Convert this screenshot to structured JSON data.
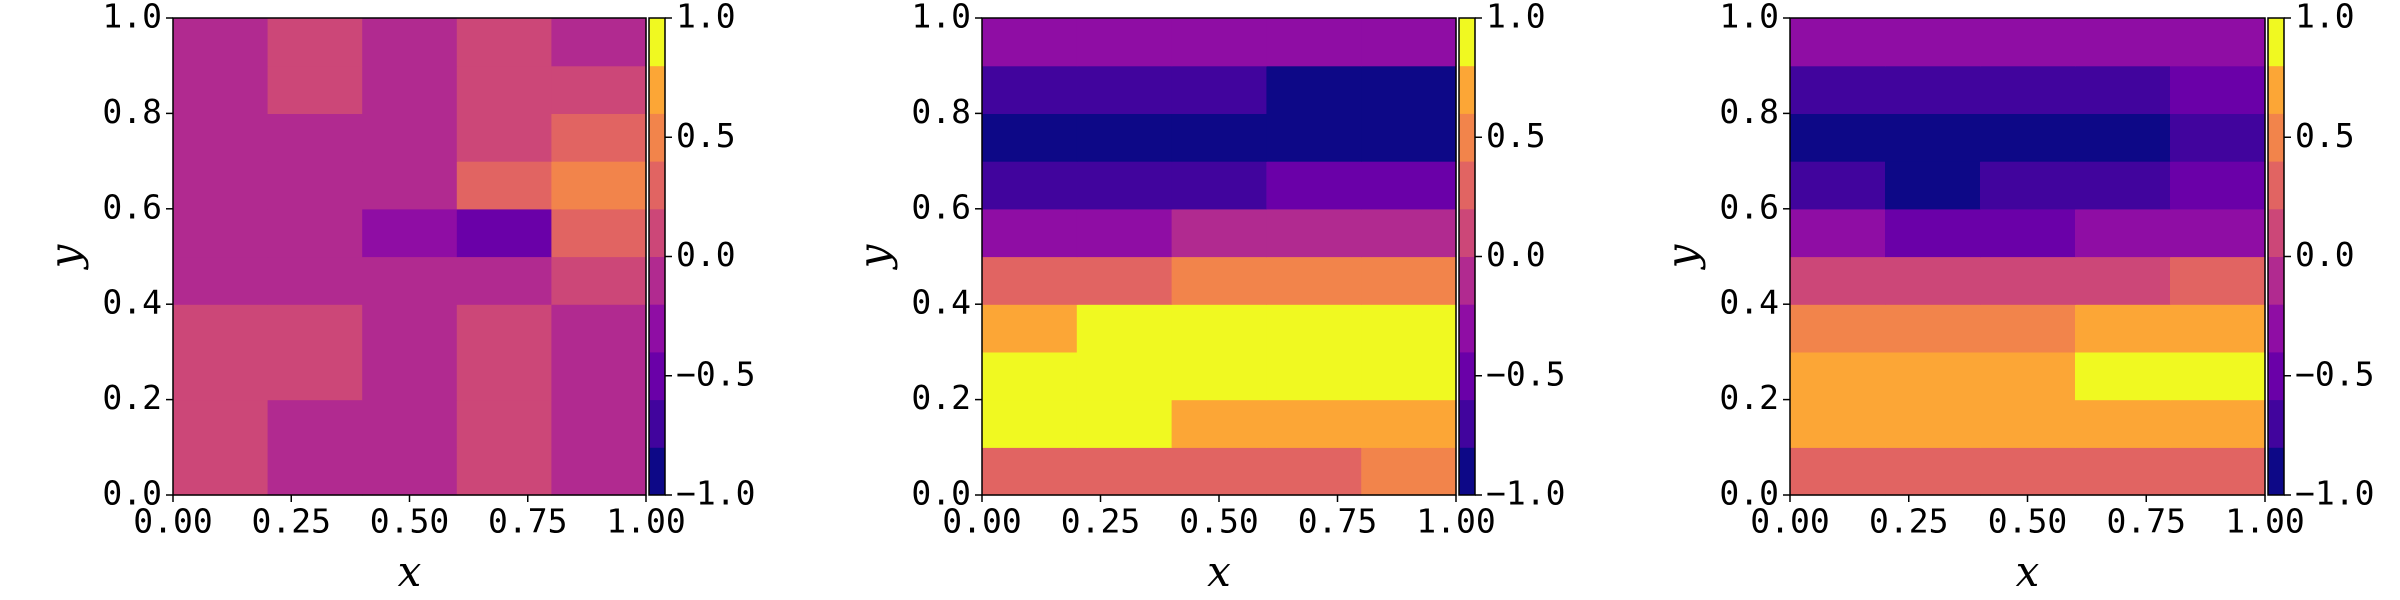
{
  "chart_data": [
    {
      "type": "contour",
      "xlabel": "x",
      "ylabel": "y",
      "xlim": [
        0,
        1
      ],
      "ylim": [
        0,
        1
      ],
      "xticks": [
        {
          "value": 0,
          "label": "0.00"
        },
        0.25,
        {
          "value": 0.5,
          "label": "0.50"
        },
        0.75,
        {
          "value": 1,
          "label": "1.00"
        }
      ],
      "yticks": [
        {
          "value": 0,
          "label": "0.0"
        },
        0.2,
        0.4,
        0.6,
        0.8,
        {
          "value": 1,
          "label": "1.0"
        }
      ],
      "x": [
        0.1,
        0.3,
        0.5,
        0.7,
        0.9
      ],
      "y": [
        0.05,
        0.15,
        0.25,
        0.35,
        0.45,
        0.55,
        0.65,
        0.75,
        0.85,
        0.95
      ],
      "z": [
        [
          0.1,
          -0.1,
          -0.1,
          0.1,
          -0.1
        ],
        [
          0.1,
          -0.1,
          -0.1,
          0.1,
          -0.1
        ],
        [
          0.1,
          0.1,
          -0.1,
          0.1,
          -0.1
        ],
        [
          0.1,
          0.1,
          -0.1,
          0.1,
          -0.1
        ],
        [
          -0.1,
          -0.1,
          -0.1,
          -0.1,
          0.1
        ],
        [
          -0.1,
          -0.1,
          -0.3,
          -0.5,
          0.3
        ],
        [
          -0.1,
          -0.1,
          -0.1,
          0.3,
          0.5
        ],
        [
          -0.1,
          -0.1,
          -0.1,
          0.1,
          0.3
        ],
        [
          -0.1,
          0.1,
          -0.1,
          0.1,
          0.1
        ],
        [
          -0.1,
          0.1,
          -0.1,
          0.1,
          -0.1
        ]
      ],
      "levels": [
        -1,
        -0.8,
        -0.6,
        -0.4,
        -0.2,
        0,
        0.2,
        0.4,
        0.6,
        0.8,
        1
      ],
      "colors": [
        "#0d0887",
        "#41049d",
        "#6a00a8",
        "#8f0da4",
        "#b12a90",
        "#cc4778",
        "#e16462",
        "#f2844b",
        "#fca636",
        "#f0f921"
      ],
      "clim": [
        -1,
        1
      ],
      "cticks": [
        {
          "value": -1,
          "label": "−1.0"
        },
        {
          "value": -0.5,
          "label": "−0.5"
        },
        {
          "value": 0,
          "label": "0.0"
        },
        0.5,
        {
          "value": 1,
          "label": "1.0"
        }
      ]
    },
    {
      "type": "contour",
      "xlabel": "x",
      "ylabel": "y",
      "xlim": [
        0,
        1
      ],
      "ylim": [
        0,
        1
      ],
      "xticks": [
        {
          "value": 0,
          "label": "0.00"
        },
        0.25,
        {
          "value": 0.5,
          "label": "0.50"
        },
        0.75,
        {
          "value": 1,
          "label": "1.00"
        }
      ],
      "yticks": [
        {
          "value": 0,
          "label": "0.0"
        },
        0.2,
        0.4,
        0.6,
        0.8,
        {
          "value": 1,
          "label": "1.0"
        }
      ],
      "x": [
        0.1,
        0.3,
        0.5,
        0.7,
        0.9
      ],
      "y": [
        0.05,
        0.15,
        0.25,
        0.35,
        0.45,
        0.55,
        0.65,
        0.75,
        0.85,
        0.95
      ],
      "z": [
        [
          0.3,
          0.3,
          0.3,
          0.35,
          0.4
        ],
        [
          0.8,
          0.8,
          0.78,
          0.75,
          0.75
        ],
        [
          0.95,
          0.95,
          0.92,
          0.9,
          0.85
        ],
        [
          0.75,
          0.8,
          0.8,
          0.85,
          0.85
        ],
        [
          0.3,
          0.35,
          0.4,
          0.45,
          0.5
        ],
        [
          -0.3,
          -0.25,
          -0.2,
          -0.1,
          -0.05
        ],
        [
          -0.75,
          -0.75,
          -0.7,
          -0.6,
          -0.5
        ],
        [
          -0.95,
          -0.95,
          -0.95,
          -0.92,
          -0.9
        ],
        [
          -0.7,
          -0.75,
          -0.8,
          -0.85,
          -0.85
        ],
        [
          -0.3,
          -0.3,
          -0.35,
          -0.4,
          -0.4
        ]
      ],
      "levels": [
        -1,
        -0.8,
        -0.6,
        -0.4,
        -0.2,
        0,
        0.2,
        0.4,
        0.6,
        0.8,
        1
      ],
      "colors": [
        "#0d0887",
        "#41049d",
        "#6a00a8",
        "#8f0da4",
        "#b12a90",
        "#cc4778",
        "#e16462",
        "#f2844b",
        "#fca636",
        "#f0f921"
      ],
      "clim": [
        -1,
        1
      ],
      "cticks": [
        {
          "value": -1,
          "label": "−1.0"
        },
        {
          "value": -0.5,
          "label": "−0.5"
        },
        {
          "value": 0,
          "label": "0.0"
        },
        0.5,
        {
          "value": 1,
          "label": "1.0"
        }
      ]
    },
    {
      "type": "contour",
      "xlabel": "x",
      "ylabel": "y",
      "xlim": [
        0,
        1
      ],
      "ylim": [
        0,
        1
      ],
      "xticks": [
        {
          "value": 0,
          "label": "0.00"
        },
        0.25,
        {
          "value": 0.5,
          "label": "0.50"
        },
        0.75,
        {
          "value": 1,
          "label": "1.00"
        }
      ],
      "yticks": [
        {
          "value": 0,
          "label": "0.0"
        },
        0.2,
        0.4,
        0.6,
        0.8,
        {
          "value": 1,
          "label": "1.0"
        }
      ],
      "x": [
        0.1,
        0.3,
        0.5,
        0.7,
        0.9
      ],
      "y": [
        0.05,
        0.15,
        0.25,
        0.35,
        0.45,
        0.55,
        0.65,
        0.75,
        0.85,
        0.95
      ],
      "z": [
        [
          0.3,
          0.3,
          0.3,
          0.3,
          0.3
        ],
        [
          0.7,
          0.7,
          0.7,
          0.7,
          0.75
        ],
        [
          0.75,
          0.75,
          0.78,
          0.82,
          0.9
        ],
        [
          0.5,
          0.5,
          0.5,
          0.6,
          0.7
        ],
        [
          0.1,
          0.05,
          0.05,
          0.1,
          0.2
        ],
        [
          -0.4,
          -0.45,
          -0.45,
          -0.4,
          -0.3
        ],
        [
          -0.8,
          -0.85,
          -0.8,
          -0.7,
          -0.6
        ],
        [
          -0.9,
          -0.95,
          -0.9,
          -0.82,
          -0.75
        ],
        [
          -0.7,
          -0.75,
          -0.7,
          -0.65,
          -0.6
        ],
        [
          -0.3,
          -0.3,
          -0.3,
          -0.3,
          -0.3
        ]
      ],
      "levels": [
        -1,
        -0.8,
        -0.6,
        -0.4,
        -0.2,
        0,
        0.2,
        0.4,
        0.6,
        0.8,
        1
      ],
      "colors": [
        "#0d0887",
        "#41049d",
        "#6a00a8",
        "#8f0da4",
        "#b12a90",
        "#cc4778",
        "#e16462",
        "#f2844b",
        "#fca636",
        "#f0f921"
      ],
      "clim": [
        -1,
        1
      ],
      "cticks": [
        {
          "value": -1,
          "label": "−1.0"
        },
        {
          "value": -0.5,
          "label": "−0.5"
        },
        {
          "value": 0,
          "label": "0.0"
        },
        0.5,
        {
          "value": 1,
          "label": "1.0"
        }
      ]
    }
  ]
}
